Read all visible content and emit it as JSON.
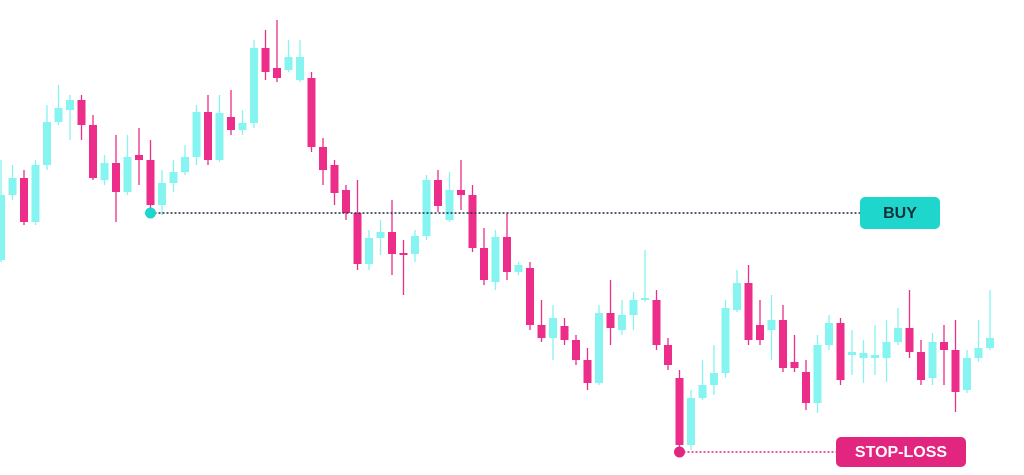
{
  "chart_data": {
    "type": "candlestick",
    "ylim": [
      0,
      475
    ],
    "up_color": "#86f4f1",
    "down_color": "#ec2d89",
    "open": [
      215,
      280,
      297,
      253,
      310,
      353,
      365,
      375,
      350,
      295,
      312,
      283,
      320,
      315,
      270,
      292,
      303,
      318,
      363,
      315,
      358,
      345,
      352,
      427,
      407,
      405,
      395,
      397,
      328,
      310,
      285,
      262,
      211,
      237,
      243,
      222,
      221,
      239,
      295,
      255,
      285,
      280,
      227,
      193,
      238,
      203,
      207,
      150,
      137,
      149,
      135,
      115,
      92,
      162,
      145,
      160,
      175,
      175,
      130,
      97,
      30,
      77,
      90,
      102,
      165,
      192,
      150,
      145,
      155,
      113,
      103,
      72,
      130,
      152,
      120,
      117,
      117,
      117,
      133,
      147,
      123,
      97,
      133,
      125,
      85,
      117,
      127
    ],
    "high": [
      315,
      310,
      305,
      315,
      370,
      390,
      380,
      380,
      360,
      320,
      340,
      340,
      347,
      335,
      305,
      315,
      330,
      370,
      380,
      380,
      385,
      365,
      435,
      445,
      455,
      435,
      435,
      403,
      337,
      315,
      290,
      295,
      245,
      255,
      275,
      235,
      245,
      300,
      305,
      303,
      315,
      290,
      247,
      245,
      262,
      213,
      213,
      175,
      170,
      157,
      140,
      127,
      170,
      195,
      175,
      183,
      225,
      185,
      137,
      105,
      85,
      115,
      130,
      175,
      205,
      210,
      175,
      180,
      170,
      140,
      115,
      140,
      160,
      157,
      145,
      135,
      150,
      155,
      167,
      185,
      135,
      142,
      150,
      155,
      125,
      155,
      185
    ],
    "low": [
      213,
      275,
      250,
      250,
      305,
      350,
      335,
      335,
      295,
      290,
      253,
      280,
      290,
      263,
      260,
      283,
      300,
      310,
      310,
      313,
      340,
      340,
      347,
      395,
      393,
      403,
      393,
      323,
      290,
      270,
      255,
      205,
      205,
      220,
      200,
      180,
      213,
      235,
      263,
      253,
      265,
      223,
      190,
      185,
      195,
      200,
      145,
      133,
      115,
      130,
      110,
      85,
      90,
      130,
      140,
      145,
      173,
      125,
      105,
      25,
      25,
      75,
      80,
      97,
      163,
      130,
      130,
      115,
      103,
      103,
      65,
      62,
      125,
      90,
      100,
      92,
      100,
      93,
      130,
      117,
      90,
      90,
      90,
      63,
      82,
      113,
      125
    ],
    "close": [
      280,
      297,
      253,
      310,
      353,
      367,
      375,
      350,
      297,
      312,
      283,
      318,
      315,
      270,
      292,
      303,
      318,
      363,
      315,
      362,
      345,
      352,
      427,
      403,
      397,
      418,
      418,
      328,
      305,
      282,
      262,
      211,
      237,
      243,
      221,
      220,
      239,
      295,
      269,
      285,
      280,
      227,
      195,
      238,
      203,
      210,
      150,
      137,
      157,
      135,
      115,
      92,
      162,
      147,
      160,
      175,
      177,
      130,
      110,
      30,
      77,
      90,
      102,
      167,
      192,
      135,
      135,
      155,
      107,
      107,
      72,
      130,
      152,
      95,
      123,
      122,
      120,
      133,
      147,
      123,
      95,
      133,
      125,
      83,
      117,
      127,
      137
    ],
    "annotations": [
      {
        "label": "BUY",
        "at": 13,
        "value": 262,
        "color": "#1ed6cc",
        "label_color": "#15323a",
        "line_color": "#1b2a4a"
      },
      {
        "label": "STOP-LOSS",
        "at": 59,
        "value": 23,
        "color": "#e2257f",
        "label_color": "#ffffff",
        "line_color": "#e2257f"
      }
    ]
  }
}
